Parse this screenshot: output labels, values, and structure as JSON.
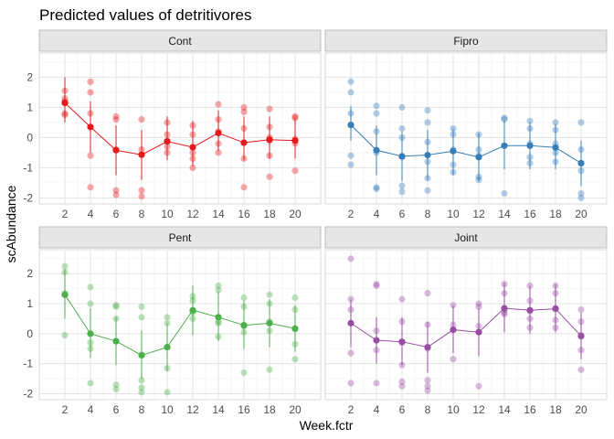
{
  "chart_data": {
    "type": "scatter",
    "title": "Predicted values of detritivores",
    "xlabel": "Week.fctr",
    "ylabel": "scAbundance",
    "categories": [
      "2",
      "4",
      "6",
      "8",
      "10",
      "12",
      "14",
      "16",
      "18",
      "20"
    ],
    "ylim": [
      -2.2,
      2.8
    ],
    "yticks": [
      -2,
      -1,
      0,
      1,
      2
    ],
    "grid": true,
    "legend": "none",
    "panels": [
      {
        "name": "Cont",
        "color": "#E41A1C",
        "predicted": [
          1.15,
          0.35,
          -0.42,
          -0.57,
          -0.13,
          -0.32,
          0.15,
          -0.17,
          -0.07,
          -0.1
        ],
        "ci_low": [
          0.5,
          -0.5,
          -1.25,
          -1.4,
          -0.75,
          -0.95,
          -0.45,
          -0.75,
          -0.7,
          -0.7
        ],
        "ci_high": [
          2.0,
          1.2,
          0.4,
          0.25,
          0.7,
          0.55,
          0.9,
          0.7,
          0.7,
          0.65
        ],
        "points": [
          [
            1.55,
            1.3,
            1.2,
            1.15,
            0.8,
            0.75
          ],
          [
            1.85,
            1.5,
            0.8,
            -0.6,
            -1.65
          ],
          [
            0.7,
            0.6,
            -0.4,
            -1.75,
            -1.9
          ],
          [
            0.6,
            -0.4,
            -1.75,
            -1.95
          ],
          [
            0.5,
            0.1,
            -0.1,
            -0.3,
            -0.5
          ],
          [
            0.4,
            0.1,
            -0.5,
            -0.7,
            -1.0
          ],
          [
            1.1,
            0.6,
            0.2,
            -0.2,
            -0.5
          ],
          [
            1.0,
            0.85,
            0.3,
            -0.7,
            -1.65
          ],
          [
            0.95,
            0.35,
            0.0,
            -0.1,
            -0.6,
            -1.3
          ],
          [
            0.7,
            0.65,
            -0.05,
            -0.2,
            -1.1
          ]
        ]
      },
      {
        "name": "Fipro",
        "color": "#377EB8",
        "predicted": [
          0.42,
          -0.42,
          -0.62,
          -0.58,
          -0.45,
          -0.65,
          -0.27,
          -0.27,
          -0.33,
          -0.85
        ],
        "ci_low": [
          -0.1,
          -1.25,
          -1.45,
          -1.4,
          -1.25,
          -1.45,
          -1.05,
          -1.05,
          -1.05,
          -1.6
        ],
        "ci_high": [
          1.05,
          0.4,
          0.2,
          0.25,
          0.3,
          0.15,
          0.55,
          0.5,
          0.45,
          -0.1
        ],
        "points": [
          [
            1.85,
            1.5,
            0.8,
            -0.6,
            -0.9
          ],
          [
            1.05,
            0.8,
            0.2,
            -0.5,
            -1.65,
            -1.7
          ],
          [
            1.0,
            0.3,
            0.0,
            -0.65,
            -1.6,
            -1.8
          ],
          [
            0.9,
            0.5,
            -0.15,
            -0.8,
            -1.35,
            -1.75
          ],
          [
            0.3,
            0.1,
            -0.4,
            -0.9,
            -1.15
          ],
          [
            0.1,
            -0.4,
            -0.6,
            -1.3,
            -1.4
          ],
          [
            0.6,
            0.65,
            -1.85
          ],
          [
            0.55,
            0.3,
            -0.2,
            -0.65,
            -0.85
          ],
          [
            0.5,
            0.25,
            -0.2,
            -0.5,
            -0.8
          ],
          [
            0.5,
            -0.4,
            -0.85,
            -1.1,
            -1.85,
            -2.0
          ]
        ]
      },
      {
        "name": "Pent",
        "color": "#4DAF4A",
        "predicted": [
          1.3,
          0.0,
          -0.25,
          -0.72,
          -0.45,
          0.78,
          0.55,
          0.28,
          0.35,
          0.17
        ],
        "ci_low": [
          0.5,
          -0.8,
          -1.05,
          -1.5,
          -1.25,
          -0.05,
          -0.25,
          -0.5,
          -0.45,
          -0.6
        ],
        "ci_high": [
          2.15,
          0.85,
          0.55,
          0.1,
          0.35,
          1.6,
          1.4,
          1.1,
          1.15,
          0.95
        ],
        "points": [
          [
            2.25,
            2.05,
            1.35,
            1.3,
            -0.05
          ],
          [
            1.55,
            1.0,
            -0.3,
            -0.5,
            -1.65
          ],
          [
            0.9,
            0.95,
            0.5,
            -0.25,
            -1.7,
            -1.85
          ],
          [
            0.9,
            0.55,
            -0.7,
            -1.55,
            -1.8,
            -1.95
          ],
          [
            0.55,
            0.35,
            -0.45,
            -1.15,
            -1.95
          ],
          [
            1.25,
            1.1,
            0.75,
            0.7,
            0.5
          ],
          [
            1.6,
            1.45,
            0.4,
            0.35,
            -0.1
          ],
          [
            1.2,
            0.9,
            0.25,
            0.05,
            -1.3
          ],
          [
            1.3,
            1.0,
            0.4,
            0.1,
            -1.2
          ],
          [
            1.2,
            0.8,
            0.15,
            -0.35,
            -0.85
          ]
        ]
      },
      {
        "name": "Joint",
        "color": "#984EA3",
        "predicted": [
          0.35,
          -0.22,
          -0.27,
          -0.45,
          0.13,
          0.05,
          0.85,
          0.78,
          0.83,
          -0.08
        ],
        "ci_low": [
          -0.45,
          -1.0,
          -1.05,
          -1.3,
          -0.65,
          -0.75,
          0.05,
          0.0,
          0.05,
          -0.85
        ],
        "ci_high": [
          1.15,
          0.55,
          0.55,
          0.4,
          0.95,
          0.85,
          1.7,
          1.6,
          1.65,
          0.7
        ],
        "points": [
          [
            2.5,
            1.15,
            0.8,
            -0.65,
            -1.65
          ],
          [
            1.65,
            1.6,
            0.1,
            -0.55,
            -1.65
          ],
          [
            1.15,
            0.4,
            -0.3,
            -1.05,
            -1.6,
            -1.75
          ],
          [
            1.35,
            0.3,
            -0.5,
            -1.55,
            -1.75,
            -1.9
          ],
          [
            0.95,
            0.3,
            -0.85
          ],
          [
            1.0,
            0.9,
            0.25,
            -1.75
          ],
          [
            1.65,
            1.35,
            0.8,
            0.7,
            0.65
          ],
          [
            1.6,
            1.1,
            0.75,
            0.5,
            0.2
          ],
          [
            1.6,
            1.35,
            0.85,
            0.45,
            0.2
          ],
          [
            0.8,
            0.4,
            -0.05,
            -0.55,
            -1.2
          ]
        ]
      }
    ]
  }
}
